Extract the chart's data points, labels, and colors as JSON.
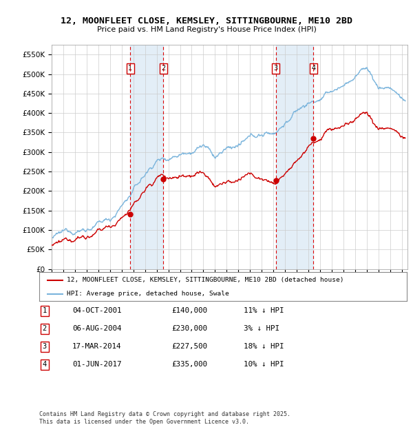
{
  "title": "12, MOONFLEET CLOSE, KEMSLEY, SITTINGBOURNE, ME10 2BD",
  "subtitle": "Price paid vs. HM Land Registry's House Price Index (HPI)",
  "ylim": [
    0,
    575000
  ],
  "yticks": [
    0,
    50000,
    100000,
    150000,
    200000,
    250000,
    300000,
    350000,
    400000,
    450000,
    500000,
    550000
  ],
  "ytick_labels": [
    "£0",
    "£50K",
    "£100K",
    "£150K",
    "£200K",
    "£250K",
    "£300K",
    "£350K",
    "£400K",
    "£450K",
    "£500K",
    "£550K"
  ],
  "xlim_start": 1995.0,
  "xlim_end": 2025.5,
  "hpi_color": "#7ab4dc",
  "price_color": "#cc0000",
  "sale_dates": [
    2001.75,
    2004.58,
    2014.21,
    2017.42
  ],
  "sale_labels": [
    "1",
    "2",
    "3",
    "4"
  ],
  "sale_prices": [
    140000,
    230000,
    227500,
    335000
  ],
  "shade_color": "#c8dff0",
  "legend_entries": [
    "12, MOONFLEET CLOSE, KEMSLEY, SITTINGBOURNE, ME10 2BD (detached house)",
    "HPI: Average price, detached house, Swale"
  ],
  "transactions": [
    {
      "num": "1",
      "date": "04-OCT-2001",
      "price": "£140,000",
      "hpi": "11% ↓ HPI"
    },
    {
      "num": "2",
      "date": "06-AUG-2004",
      "price": "£230,000",
      "hpi": "3% ↓ HPI"
    },
    {
      "num": "3",
      "date": "17-MAR-2014",
      "price": "£227,500",
      "hpi": "18% ↓ HPI"
    },
    {
      "num": "4",
      "date": "01-JUN-2017",
      "price": "£335,000",
      "hpi": "10% ↓ HPI"
    }
  ],
  "footer": "Contains HM Land Registry data © Crown copyright and database right 2025.\nThis data is licensed under the Open Government Licence v3.0.",
  "bg_color": "#ffffff",
  "grid_color": "#cccccc"
}
